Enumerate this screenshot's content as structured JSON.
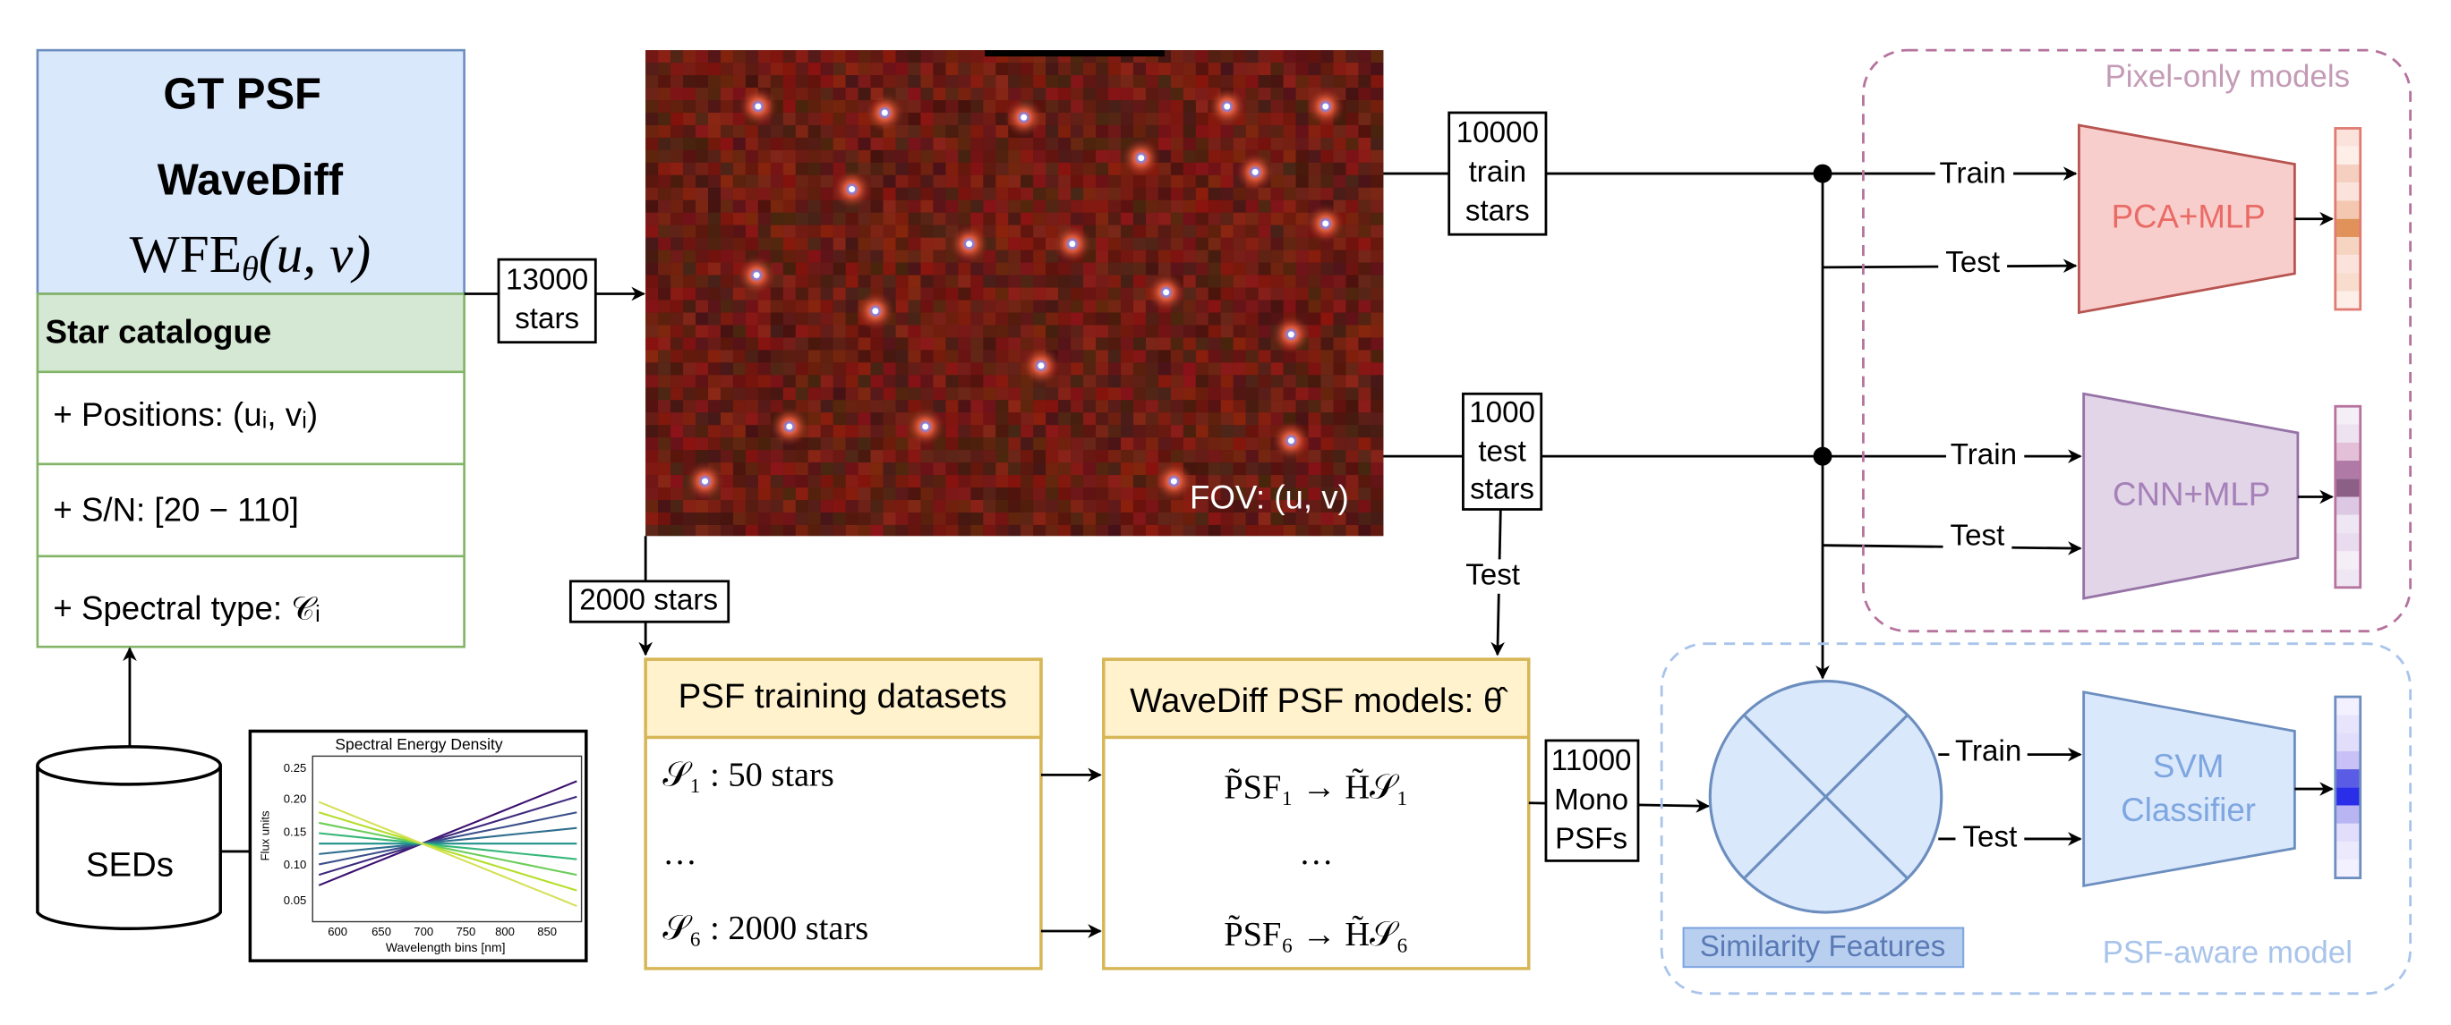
{
  "gt_box": {
    "title": "GT PSF",
    "model": "WaveDiff",
    "wfe": {
      "main": "WFE",
      "sub": "θ",
      "args": "(u, v)"
    }
  },
  "star_catalogue": {
    "title": "Star catalogue",
    "items": [
      "+ Positions: (uᵢ, vᵢ)",
      "+ S/N: [20 − 110]",
      "+ Spectral type: 𝒞ᵢ"
    ]
  },
  "seds": {
    "label": "SEDs",
    "plot": {
      "title": "Spectral Energy Density",
      "y_label": "Flux units",
      "x_label": "Wavelength bins [nm]",
      "yticks": [
        "0.25",
        "0.20",
        "0.15",
        "0.10",
        "0.05"
      ],
      "xticks": [
        "600",
        "650",
        "700",
        "750",
        "800",
        "850"
      ]
    }
  },
  "edges": {
    "all_stars": [
      "13000",
      "stars"
    ],
    "train_stars": [
      "10000",
      "train",
      "stars"
    ],
    "test_stars": [
      "1000",
      "test",
      "stars"
    ],
    "subset_stars": "2000 stars",
    "test_to_models": "Test",
    "mono_psfs": [
      "11000",
      "Mono",
      "PSFs"
    ]
  },
  "fov": {
    "label": "FOV: (u, v)"
  },
  "psf_training": {
    "title": "PSF training datasets",
    "rows": [
      "𝒮₁  : 50 stars",
      "…",
      "𝒮₆ :  2000 stars"
    ]
  },
  "wavediff_models": {
    "title": "WaveDiff PSF models: θ̂",
    "rows": [
      "P̃SF₁ → H̃𝒮₁",
      "…",
      "P̃SF₆ → H̃𝒮₆"
    ]
  },
  "pixel_only": {
    "title": "Pixel-only models",
    "models": [
      {
        "name": "PCA+MLP",
        "inputs": [
          "Train",
          "Test"
        ]
      },
      {
        "name": "CNN+MLP",
        "inputs": [
          "Train",
          "Test"
        ]
      }
    ]
  },
  "psf_aware": {
    "title": "PSF-aware model",
    "features": "Similarity Features",
    "model": {
      "name": [
        "SVM",
        "Classifier"
      ],
      "inputs": [
        "Train",
        "Test"
      ]
    }
  }
}
